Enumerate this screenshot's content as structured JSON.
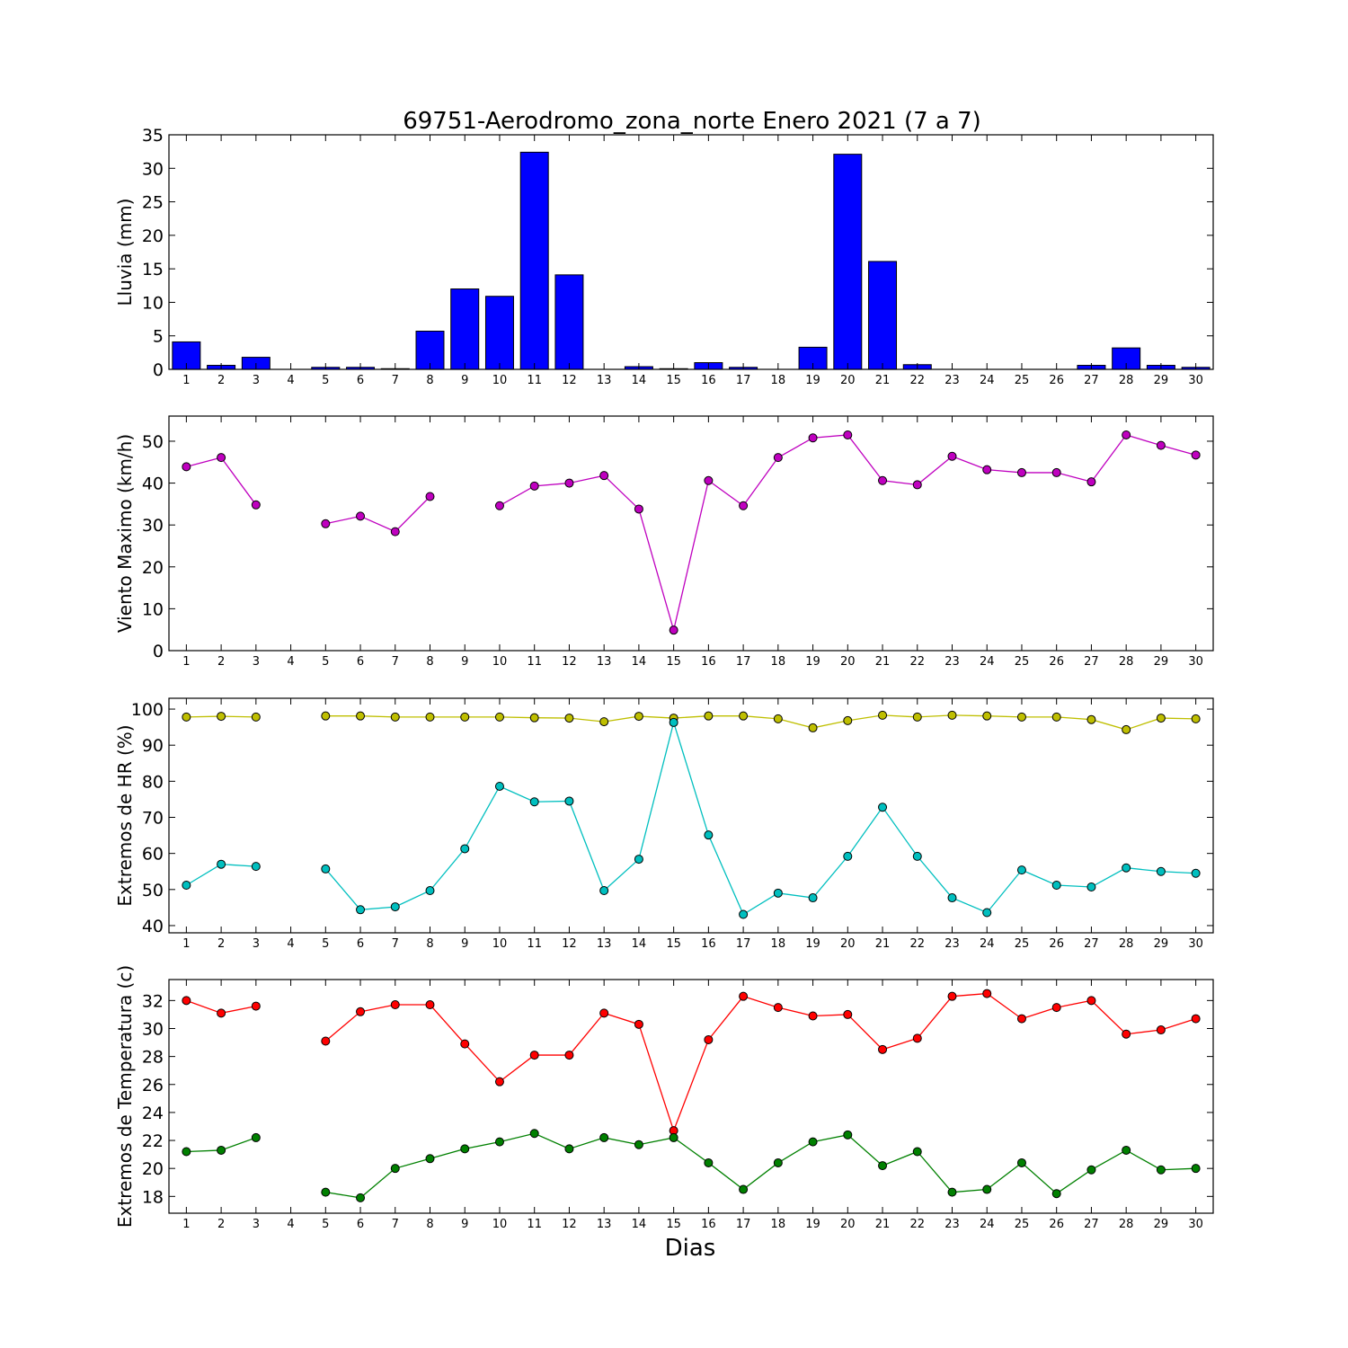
{
  "title": "69751-Aerodromo_zona_norte Enero 2021  (7 a 7)",
  "xlabel": "Dias",
  "chart_data": [
    {
      "type": "bar",
      "ylabel": "Lluvia (mm)",
      "ylim": [
        0,
        35
      ],
      "yticks": [
        0,
        5,
        10,
        15,
        20,
        25,
        30,
        35
      ],
      "categories": [
        "1",
        "2",
        "3",
        "4",
        "5",
        "6",
        "7",
        "8",
        "9",
        "10",
        "11",
        "12",
        "13",
        "14",
        "15",
        "16",
        "17",
        "18",
        "19",
        "20",
        "21",
        "22",
        "23",
        "24",
        "25",
        "26",
        "27",
        "28",
        "29",
        "30"
      ],
      "series": [
        {
          "color": "#0000ff",
          "values": [
            4.1,
            0.6,
            1.8,
            0,
            0.3,
            0.3,
            0.1,
            5.7,
            12.0,
            10.9,
            32.4,
            14.1,
            0,
            0.4,
            0.1,
            1.0,
            0.3,
            0,
            3.3,
            32.1,
            16.1,
            0.7,
            0,
            0,
            0,
            0,
            0.6,
            3.2,
            0.6,
            0.3
          ]
        }
      ]
    },
    {
      "type": "line",
      "ylabel": "Viento Maximo (km/h)",
      "ylim": [
        0,
        56
      ],
      "yticks": [
        0,
        10,
        20,
        30,
        40,
        50
      ],
      "x": [
        1,
        2,
        3,
        4,
        5,
        6,
        7,
        8,
        9,
        10,
        11,
        12,
        13,
        14,
        15,
        16,
        17,
        18,
        19,
        20,
        21,
        22,
        23,
        24,
        25,
        26,
        27,
        28,
        29,
        30
      ],
      "series": [
        {
          "color": "#bf00bf",
          "values": [
            43.9,
            46.1,
            34.8,
            null,
            30.3,
            32.1,
            28.4,
            36.8,
            null,
            34.6,
            39.3,
            40.0,
            41.8,
            33.8,
            4.9,
            40.6,
            34.6,
            46.1,
            50.8,
            51.5,
            40.6,
            39.6,
            46.4,
            43.2,
            42.5,
            42.5,
            40.3,
            51.5,
            49.0,
            46.7
          ]
        }
      ]
    },
    {
      "type": "line",
      "ylabel": "Extremos de HR (%)",
      "ylim": [
        38,
        103
      ],
      "yticks": [
        40,
        50,
        60,
        70,
        80,
        90,
        100
      ],
      "x": [
        1,
        2,
        3,
        4,
        5,
        6,
        7,
        8,
        9,
        10,
        11,
        12,
        13,
        14,
        15,
        16,
        17,
        18,
        19,
        20,
        21,
        22,
        23,
        24,
        25,
        26,
        27,
        28,
        29,
        30
      ],
      "series": [
        {
          "color": "#bfbf00",
          "values": [
            97.8,
            98.0,
            97.8,
            null,
            98.1,
            98.1,
            97.8,
            97.8,
            97.8,
            97.8,
            97.6,
            97.5,
            96.5,
            98.0,
            97.5,
            98.1,
            98.1,
            97.3,
            94.8,
            96.8,
            98.3,
            97.8,
            98.3,
            98.1,
            97.8,
            97.8,
            97.1,
            94.3,
            97.5,
            97.3
          ]
        },
        {
          "color": "#00bfbf",
          "values": [
            51.2,
            57.0,
            56.4,
            null,
            55.7,
            44.4,
            45.2,
            49.7,
            61.3,
            78.6,
            74.3,
            74.5,
            49.7,
            58.4,
            96.3,
            65.1,
            43.1,
            49.0,
            47.7,
            59.2,
            72.8,
            59.2,
            47.7,
            43.6,
            55.4,
            51.2,
            50.7,
            56.0,
            55.0,
            54.5
          ]
        }
      ]
    },
    {
      "type": "line",
      "ylabel": "Extremos de Temperatura (c)",
      "ylim": [
        16.8,
        33.5
      ],
      "yticks": [
        18,
        20,
        22,
        24,
        26,
        28,
        30,
        32
      ],
      "x": [
        1,
        2,
        3,
        4,
        5,
        6,
        7,
        8,
        9,
        10,
        11,
        12,
        13,
        14,
        15,
        16,
        17,
        18,
        19,
        20,
        21,
        22,
        23,
        24,
        25,
        26,
        27,
        28,
        29,
        30
      ],
      "series": [
        {
          "color": "#ff0000",
          "values": [
            32.0,
            31.1,
            31.6,
            null,
            29.1,
            31.2,
            31.7,
            31.7,
            28.9,
            26.2,
            28.1,
            28.1,
            31.1,
            30.3,
            22.7,
            29.2,
            32.3,
            31.5,
            30.9,
            31.0,
            28.5,
            29.3,
            32.3,
            32.5,
            30.7,
            31.5,
            32.0,
            29.6,
            29.9,
            30.7
          ]
        },
        {
          "color": "#008000",
          "values": [
            21.2,
            21.3,
            22.2,
            null,
            18.3,
            17.9,
            20.0,
            20.7,
            21.4,
            21.9,
            22.5,
            21.4,
            22.2,
            21.7,
            22.2,
            20.4,
            18.5,
            20.4,
            21.9,
            22.4,
            20.2,
            21.2,
            18.3,
            18.5,
            20.4,
            18.2,
            19.9,
            21.3,
            19.9,
            20.0
          ]
        }
      ]
    }
  ]
}
